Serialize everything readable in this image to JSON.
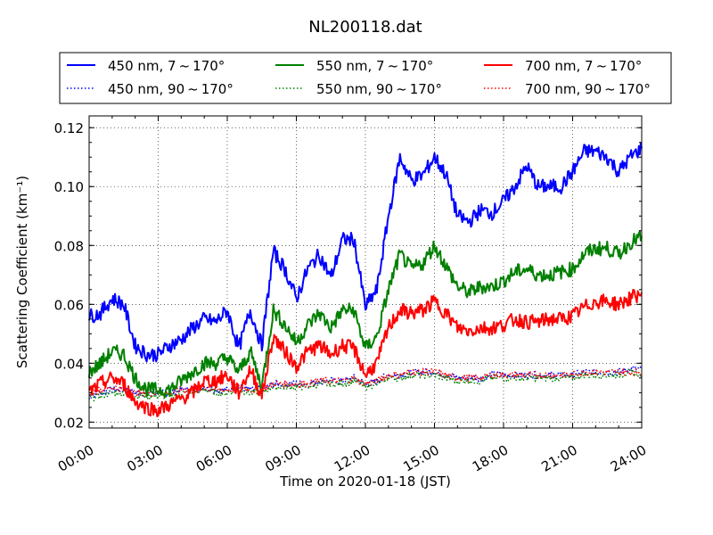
{
  "chart_data": {
    "type": "line",
    "title": "NL200118.dat",
    "xlabel": "Time on 2020-01-18 (JST)",
    "ylabel": "Scattering Coefficient (km⁻¹)",
    "xlim": [
      0,
      24
    ],
    "ylim": [
      0.018,
      0.124
    ],
    "x_ticks": [
      0,
      3,
      6,
      9,
      12,
      15,
      18,
      21,
      24
    ],
    "x_tick_labels": [
      "00:00",
      "03:00",
      "06:00",
      "09:00",
      "12:00",
      "15:00",
      "18:00",
      "21:00",
      "24:00"
    ],
    "y_ticks": [
      0.02,
      0.04,
      0.06,
      0.08,
      0.1,
      0.12
    ],
    "y_tick_labels": [
      "0.02",
      "0.04",
      "0.06",
      "0.08",
      "0.10",
      "0.12"
    ],
    "grid": true,
    "legend_position": "top, above plot, 3 columns",
    "x": [
      0,
      0.5,
      1,
      1.5,
      2,
      2.5,
      3,
      3.5,
      4,
      4.5,
      5,
      5.5,
      6,
      6.5,
      7,
      7.5,
      8,
      8.5,
      9,
      9.5,
      10,
      10.5,
      11,
      11.5,
      12,
      12.5,
      13,
      13.5,
      14,
      14.5,
      15,
      15.5,
      16,
      16.5,
      17,
      17.5,
      18,
      18.5,
      19,
      19.5,
      20,
      20.5,
      21,
      21.5,
      22,
      22.5,
      23,
      23.5,
      24
    ],
    "series": [
      {
        "name": "450 nm, 7 ~ 170°",
        "color": "#0000ff",
        "style": "solid",
        "values": [
          0.056,
          0.057,
          0.062,
          0.06,
          0.046,
          0.043,
          0.043,
          0.046,
          0.048,
          0.052,
          0.055,
          0.054,
          0.058,
          0.045,
          0.058,
          0.046,
          0.078,
          0.072,
          0.062,
          0.072,
          0.077,
          0.069,
          0.082,
          0.082,
          0.059,
          0.065,
          0.09,
          0.11,
          0.102,
          0.104,
          0.11,
          0.104,
          0.09,
          0.088,
          0.092,
          0.091,
          0.095,
          0.1,
          0.107,
          0.1,
          0.1,
          0.1,
          0.105,
          0.112,
          0.112,
          0.11,
          0.105,
          0.11,
          0.113
        ]
      },
      {
        "name": "450 nm, 90 ~ 170°",
        "color": "#0000ff",
        "style": "dotted",
        "values": [
          0.029,
          0.03,
          0.031,
          0.031,
          0.03,
          0.03,
          0.03,
          0.03,
          0.031,
          0.031,
          0.032,
          0.031,
          0.031,
          0.032,
          0.031,
          0.031,
          0.033,
          0.033,
          0.033,
          0.033,
          0.034,
          0.034,
          0.034,
          0.035,
          0.033,
          0.034,
          0.036,
          0.036,
          0.037,
          0.037,
          0.037,
          0.036,
          0.035,
          0.035,
          0.035,
          0.036,
          0.036,
          0.036,
          0.036,
          0.036,
          0.036,
          0.036,
          0.036,
          0.037,
          0.037,
          0.037,
          0.037,
          0.038,
          0.038
        ]
      },
      {
        "name": "550 nm, 7 ~ 170°",
        "color": "#008000",
        "style": "solid",
        "values": [
          0.037,
          0.04,
          0.044,
          0.043,
          0.035,
          0.031,
          0.031,
          0.031,
          0.034,
          0.037,
          0.04,
          0.04,
          0.042,
          0.037,
          0.044,
          0.032,
          0.058,
          0.053,
          0.047,
          0.053,
          0.057,
          0.052,
          0.058,
          0.058,
          0.045,
          0.049,
          0.065,
          0.077,
          0.072,
          0.074,
          0.08,
          0.073,
          0.066,
          0.064,
          0.066,
          0.066,
          0.068,
          0.071,
          0.072,
          0.07,
          0.07,
          0.071,
          0.072,
          0.077,
          0.079,
          0.079,
          0.077,
          0.081,
          0.083
        ]
      },
      {
        "name": "550 nm, 90 ~ 170°",
        "color": "#008000",
        "style": "dotted",
        "values": [
          0.028,
          0.029,
          0.03,
          0.03,
          0.029,
          0.029,
          0.029,
          0.029,
          0.03,
          0.03,
          0.031,
          0.03,
          0.03,
          0.031,
          0.03,
          0.03,
          0.032,
          0.032,
          0.032,
          0.032,
          0.033,
          0.033,
          0.033,
          0.034,
          0.032,
          0.033,
          0.035,
          0.035,
          0.036,
          0.036,
          0.036,
          0.035,
          0.034,
          0.034,
          0.034,
          0.035,
          0.035,
          0.035,
          0.035,
          0.035,
          0.035,
          0.035,
          0.035,
          0.036,
          0.036,
          0.036,
          0.036,
          0.037,
          0.036
        ]
      },
      {
        "name": "700 nm, 7 ~ 170°",
        "color": "#ff0000",
        "style": "solid",
        "values": [
          0.03,
          0.033,
          0.035,
          0.033,
          0.027,
          0.025,
          0.024,
          0.026,
          0.028,
          0.03,
          0.034,
          0.034,
          0.036,
          0.03,
          0.038,
          0.029,
          0.049,
          0.044,
          0.039,
          0.044,
          0.046,
          0.043,
          0.046,
          0.045,
          0.036,
          0.04,
          0.052,
          0.058,
          0.057,
          0.058,
          0.061,
          0.057,
          0.052,
          0.051,
          0.052,
          0.052,
          0.053,
          0.055,
          0.054,
          0.054,
          0.055,
          0.055,
          0.056,
          0.059,
          0.061,
          0.061,
          0.06,
          0.062,
          0.064
        ]
      },
      {
        "name": "700 nm, 90 ~ 170°",
        "color": "#ff0000",
        "style": "dotted",
        "values": [
          0.03,
          0.031,
          0.032,
          0.031,
          0.03,
          0.03,
          0.03,
          0.03,
          0.031,
          0.031,
          0.032,
          0.031,
          0.031,
          0.032,
          0.031,
          0.031,
          0.033,
          0.033,
          0.033,
          0.033,
          0.034,
          0.034,
          0.034,
          0.035,
          0.033,
          0.034,
          0.036,
          0.036,
          0.037,
          0.037,
          0.037,
          0.036,
          0.035,
          0.035,
          0.035,
          0.036,
          0.036,
          0.036,
          0.036,
          0.036,
          0.036,
          0.036,
          0.036,
          0.037,
          0.037,
          0.037,
          0.037,
          0.037,
          0.037
        ]
      }
    ]
  }
}
